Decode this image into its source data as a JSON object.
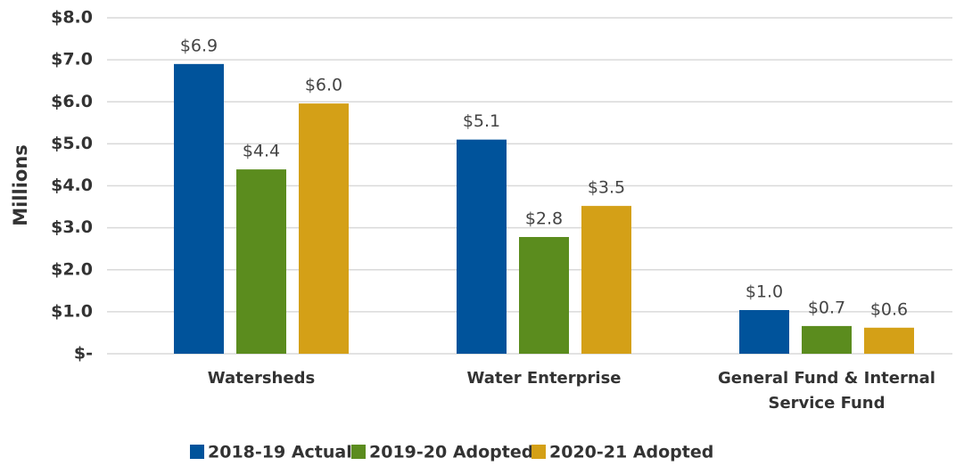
{
  "chart_data": {
    "type": "bar",
    "y_label": "Millions",
    "categories": [
      "Watersheds",
      "Water Enterprise",
      "General Fund & Internal Service Fund"
    ],
    "series": [
      {
        "name": "2018-19 Actual",
        "color": "#00539b",
        "values": [
          6.9,
          5.1,
          1.04
        ],
        "value_labels": [
          "$6.9",
          "$5.1",
          "$1.0"
        ]
      },
      {
        "name": "2019-20 Adopted",
        "color": "#5b8c1e",
        "values": [
          4.39,
          2.78,
          0.66
        ],
        "value_labels": [
          "$4.4",
          "$2.8",
          "$0.7"
        ]
      },
      {
        "name": "2020-21 Adopted",
        "color": "#d4a017",
        "values": [
          5.96,
          3.52,
          0.62
        ],
        "value_labels": [
          "$6.0",
          "$3.5",
          "$0.6"
        ]
      }
    ],
    "ylim": [
      0,
      8
    ],
    "yticks": [
      {
        "value": 0,
        "label": "$-"
      },
      {
        "value": 1,
        "label": "$1.0"
      },
      {
        "value": 2,
        "label": "$2.0"
      },
      {
        "value": 3,
        "label": "$3.0"
      },
      {
        "value": 4,
        "label": "$4.0"
      },
      {
        "value": 5,
        "label": "$5.0"
      },
      {
        "value": 6,
        "label": "$6.0"
      },
      {
        "value": 7,
        "label": "$7.0"
      },
      {
        "value": 8,
        "label": "$8.0"
      }
    ],
    "grid": true
  }
}
